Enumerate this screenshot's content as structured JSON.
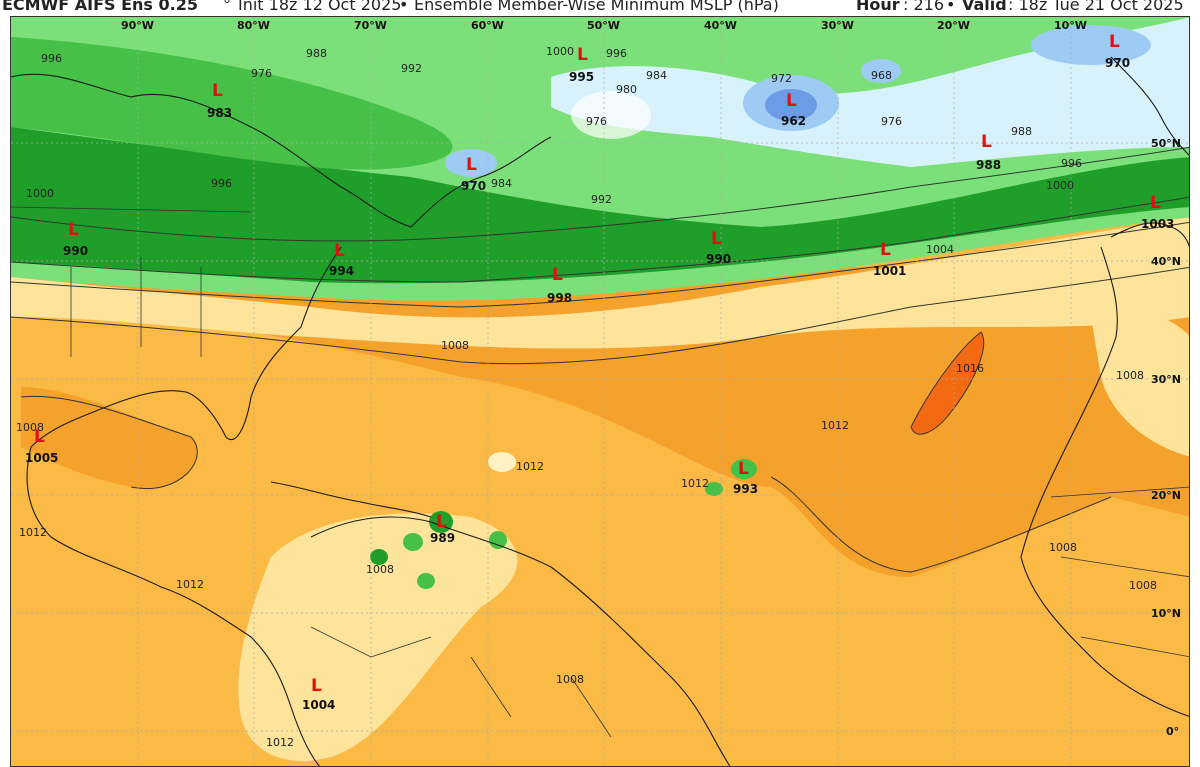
{
  "header": {
    "model": "ECMWF AIFS Ens 0.25",
    "degree": "°",
    "init": "Init 18z 12 Oct 2025",
    "bullet": "•",
    "product": "Ensemble Member-Wise Minimum MSLP (hPa)",
    "hour_key": "Hour",
    "hour_val": ": 216",
    "valid_key": "Valid",
    "valid_val": ": 18z Tue 21 Oct 2025"
  },
  "map": {
    "longitude_labels": [
      "90°W",
      "80°W",
      "70°W",
      "60°W",
      "50°W",
      "40°W",
      "30°W",
      "20°W",
      "10°W"
    ],
    "latitude_labels": [
      "50°N",
      "40°N",
      "30°N",
      "20°N",
      "10°N",
      "0°"
    ],
    "lows": [
      {
        "symbol": "L",
        "value": "983"
      },
      {
        "symbol": "L",
        "value": "990"
      },
      {
        "symbol": "L",
        "value": "970"
      },
      {
        "symbol": "L",
        "value": "994"
      },
      {
        "symbol": "L",
        "value": "995"
      },
      {
        "symbol": "L",
        "value": "962"
      },
      {
        "symbol": "L",
        "value": "970"
      },
      {
        "symbol": "L",
        "value": "988"
      },
      {
        "symbol": "L",
        "value": "1003"
      },
      {
        "symbol": "L",
        "value": "1001"
      },
      {
        "symbol": "L",
        "value": "990"
      },
      {
        "symbol": "L",
        "value": "998"
      },
      {
        "symbol": "L",
        "value": "1005"
      },
      {
        "symbol": "L",
        "value": "993"
      },
      {
        "symbol": "L",
        "value": "989"
      },
      {
        "symbol": "L",
        "value": "1004"
      }
    ],
    "isobar_labels": [
      "1000",
      "996",
      "984",
      "980",
      "976",
      "972",
      "968",
      "976",
      "988",
      "996",
      "1000",
      "992",
      "984",
      "996",
      "988",
      "976",
      "992",
      "996",
      "1000",
      "1004",
      "1008",
      "1012",
      "1012",
      "1012",
      "1016",
      "1008",
      "1012",
      "1008",
      "1008",
      "1008",
      "1012",
      "1012",
      "1008",
      "1008"
    ],
    "colors": {
      "ocean_orange": "#f5a22c",
      "tropical_orange": "#fbb946",
      "pale_yellow": "#fde49a",
      "cream": "#fef2c2",
      "light_green": "#7ce07a",
      "mid_green": "#46c046",
      "dark_green": "#1f9e2a",
      "pale_blue": "#d8f2fb",
      "light_blue": "#9ecbf4",
      "mid_blue": "#6e9be6",
      "high_orange": "#f46a12",
      "low_marker": "#e01010"
    }
  }
}
